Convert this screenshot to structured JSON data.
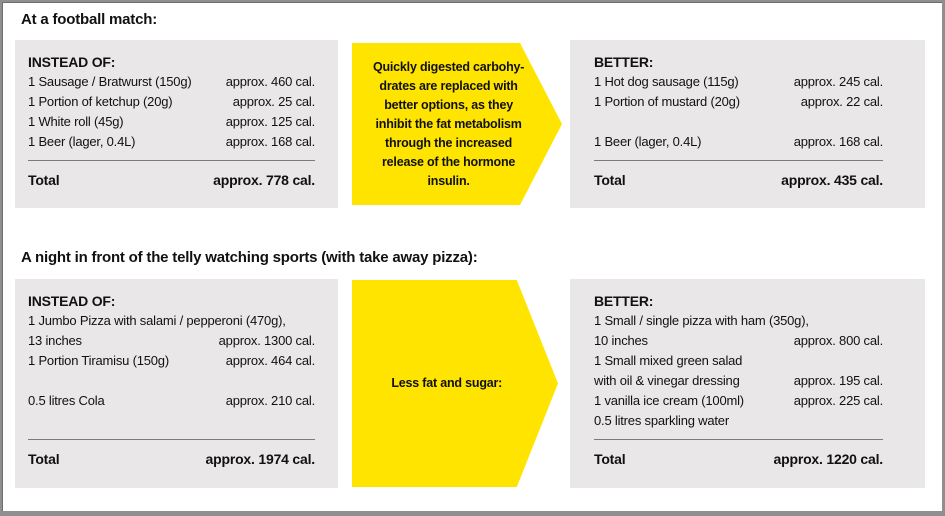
{
  "colors": {
    "accent_yellow": "#ffe400",
    "box_gray": "#e9e7e8",
    "frame_gray": "#8f8f8f",
    "text": "#111111"
  },
  "sections": [
    {
      "heading": "At a football match:",
      "instead": {
        "title": "INSTEAD OF:",
        "rows": [
          {
            "item": "1 Sausage / Bratwurst (150g)",
            "value": "approx. 460 cal."
          },
          {
            "item": "1 Portion of ketchup (20g)",
            "value": "approx. 25 cal."
          },
          {
            "item": "1 White roll (45g)",
            "value": "approx. 125 cal."
          },
          {
            "item": "1 Beer (lager, 0.4L)",
            "value": "approx. 168 cal."
          }
        ],
        "total_label": "Total",
        "total_value": "approx. 778 cal."
      },
      "arrow_text": "Quickly digested carbohy-\ndrates are replaced with\nbetter options, as they\ninhibit the fat metabolism\nthrough the increased\nrelease of the hormone\ninsulin.",
      "better": {
        "title": "BETTER:",
        "rows": [
          {
            "item": "1 Hot dog sausage (115g)",
            "value": "approx. 245 cal."
          },
          {
            "item": "1 Portion of mustard (20g)",
            "value": "approx. 22 cal."
          },
          {
            "item": "",
            "value": ""
          },
          {
            "item": "1 Beer (lager, 0.4L)",
            "value": "approx. 168 cal."
          }
        ],
        "total_label": "Total",
        "total_value": "approx. 435 cal."
      }
    },
    {
      "heading": "A night in front of the telly watching sports (with take away pizza):",
      "instead": {
        "title": "INSTEAD OF:",
        "rows": [
          {
            "item": "1 Jumbo Pizza with salami / pepperoni (470g),",
            "value": ""
          },
          {
            "item": "13 inches",
            "value": "approx. 1300 cal."
          },
          {
            "item": "1 Portion Tiramisu (150g)",
            "value": "approx. 464 cal."
          },
          {
            "item": "",
            "value": ""
          },
          {
            "item": "0.5 litres Cola",
            "value": "approx. 210 cal."
          },
          {
            "item": "",
            "value": ""
          }
        ],
        "total_label": "Total",
        "total_value": "approx. 1974 cal."
      },
      "arrow_text": "Less fat and sugar:",
      "better": {
        "title": "BETTER:",
        "rows": [
          {
            "item": "1 Small / single pizza with ham (350g),",
            "value": ""
          },
          {
            "item": "10 inches",
            "value": "approx. 800 cal."
          },
          {
            "item": "1 Small mixed green salad",
            "value": ""
          },
          {
            "item": "with oil & vinegar dressing",
            "value": "approx. 195 cal."
          },
          {
            "item": "1 vanilla ice cream (100ml)",
            "value": "approx. 225 cal."
          },
          {
            "item": "0.5 litres sparkling water",
            "value": ""
          }
        ],
        "total_label": "Total",
        "total_value": "approx. 1220 cal."
      }
    }
  ]
}
